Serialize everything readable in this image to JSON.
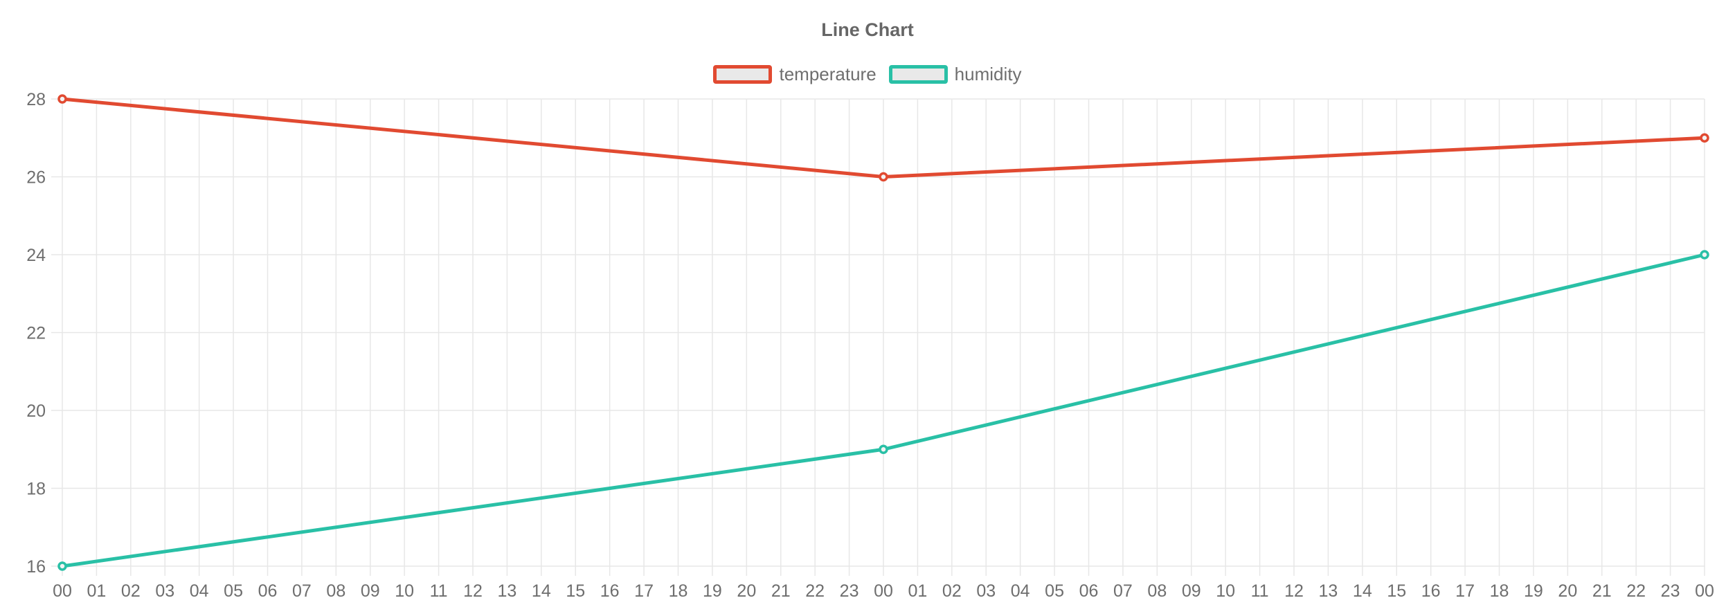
{
  "chart": {
    "title": "Line Chart"
  },
  "chart_data": {
    "type": "line",
    "title": "Line Chart",
    "xlabel": "",
    "ylabel": "",
    "x_labels": [
      "00",
      "01",
      "02",
      "03",
      "04",
      "05",
      "06",
      "07",
      "08",
      "09",
      "10",
      "11",
      "12",
      "13",
      "14",
      "15",
      "16",
      "17",
      "18",
      "19",
      "20",
      "21",
      "22",
      "23",
      "00",
      "01",
      "02",
      "03",
      "04",
      "05",
      "06",
      "07",
      "08",
      "09",
      "10",
      "11",
      "12",
      "13",
      "14",
      "15",
      "16",
      "17",
      "18",
      "19",
      "20",
      "21",
      "22",
      "23",
      "00"
    ],
    "y_ticks": [
      16,
      18,
      20,
      22,
      24,
      26,
      28
    ],
    "ylim": [
      16,
      28
    ],
    "grid": true,
    "legend_position": "top-center",
    "series": [
      {
        "name": "temperature",
        "color": "#e14a31",
        "points": [
          {
            "x": 0,
            "y": 28
          },
          {
            "x": 24,
            "y": 26
          },
          {
            "x": 48,
            "y": 27
          }
        ]
      },
      {
        "name": "humidity",
        "color": "#29c0a6",
        "points": [
          {
            "x": 0,
            "y": 16
          },
          {
            "x": 24,
            "y": 19
          },
          {
            "x": 48,
            "y": 24
          }
        ]
      }
    ],
    "marker_style": "open-circle",
    "colors": {
      "legend_swatch_fill": "#e9e9e9",
      "grid_line": "#e7e7e7",
      "tick_text": "#6e6e6e",
      "title_text": "#666666",
      "marker_fill": "#f4f4f4",
      "background": "#ffffff"
    }
  }
}
